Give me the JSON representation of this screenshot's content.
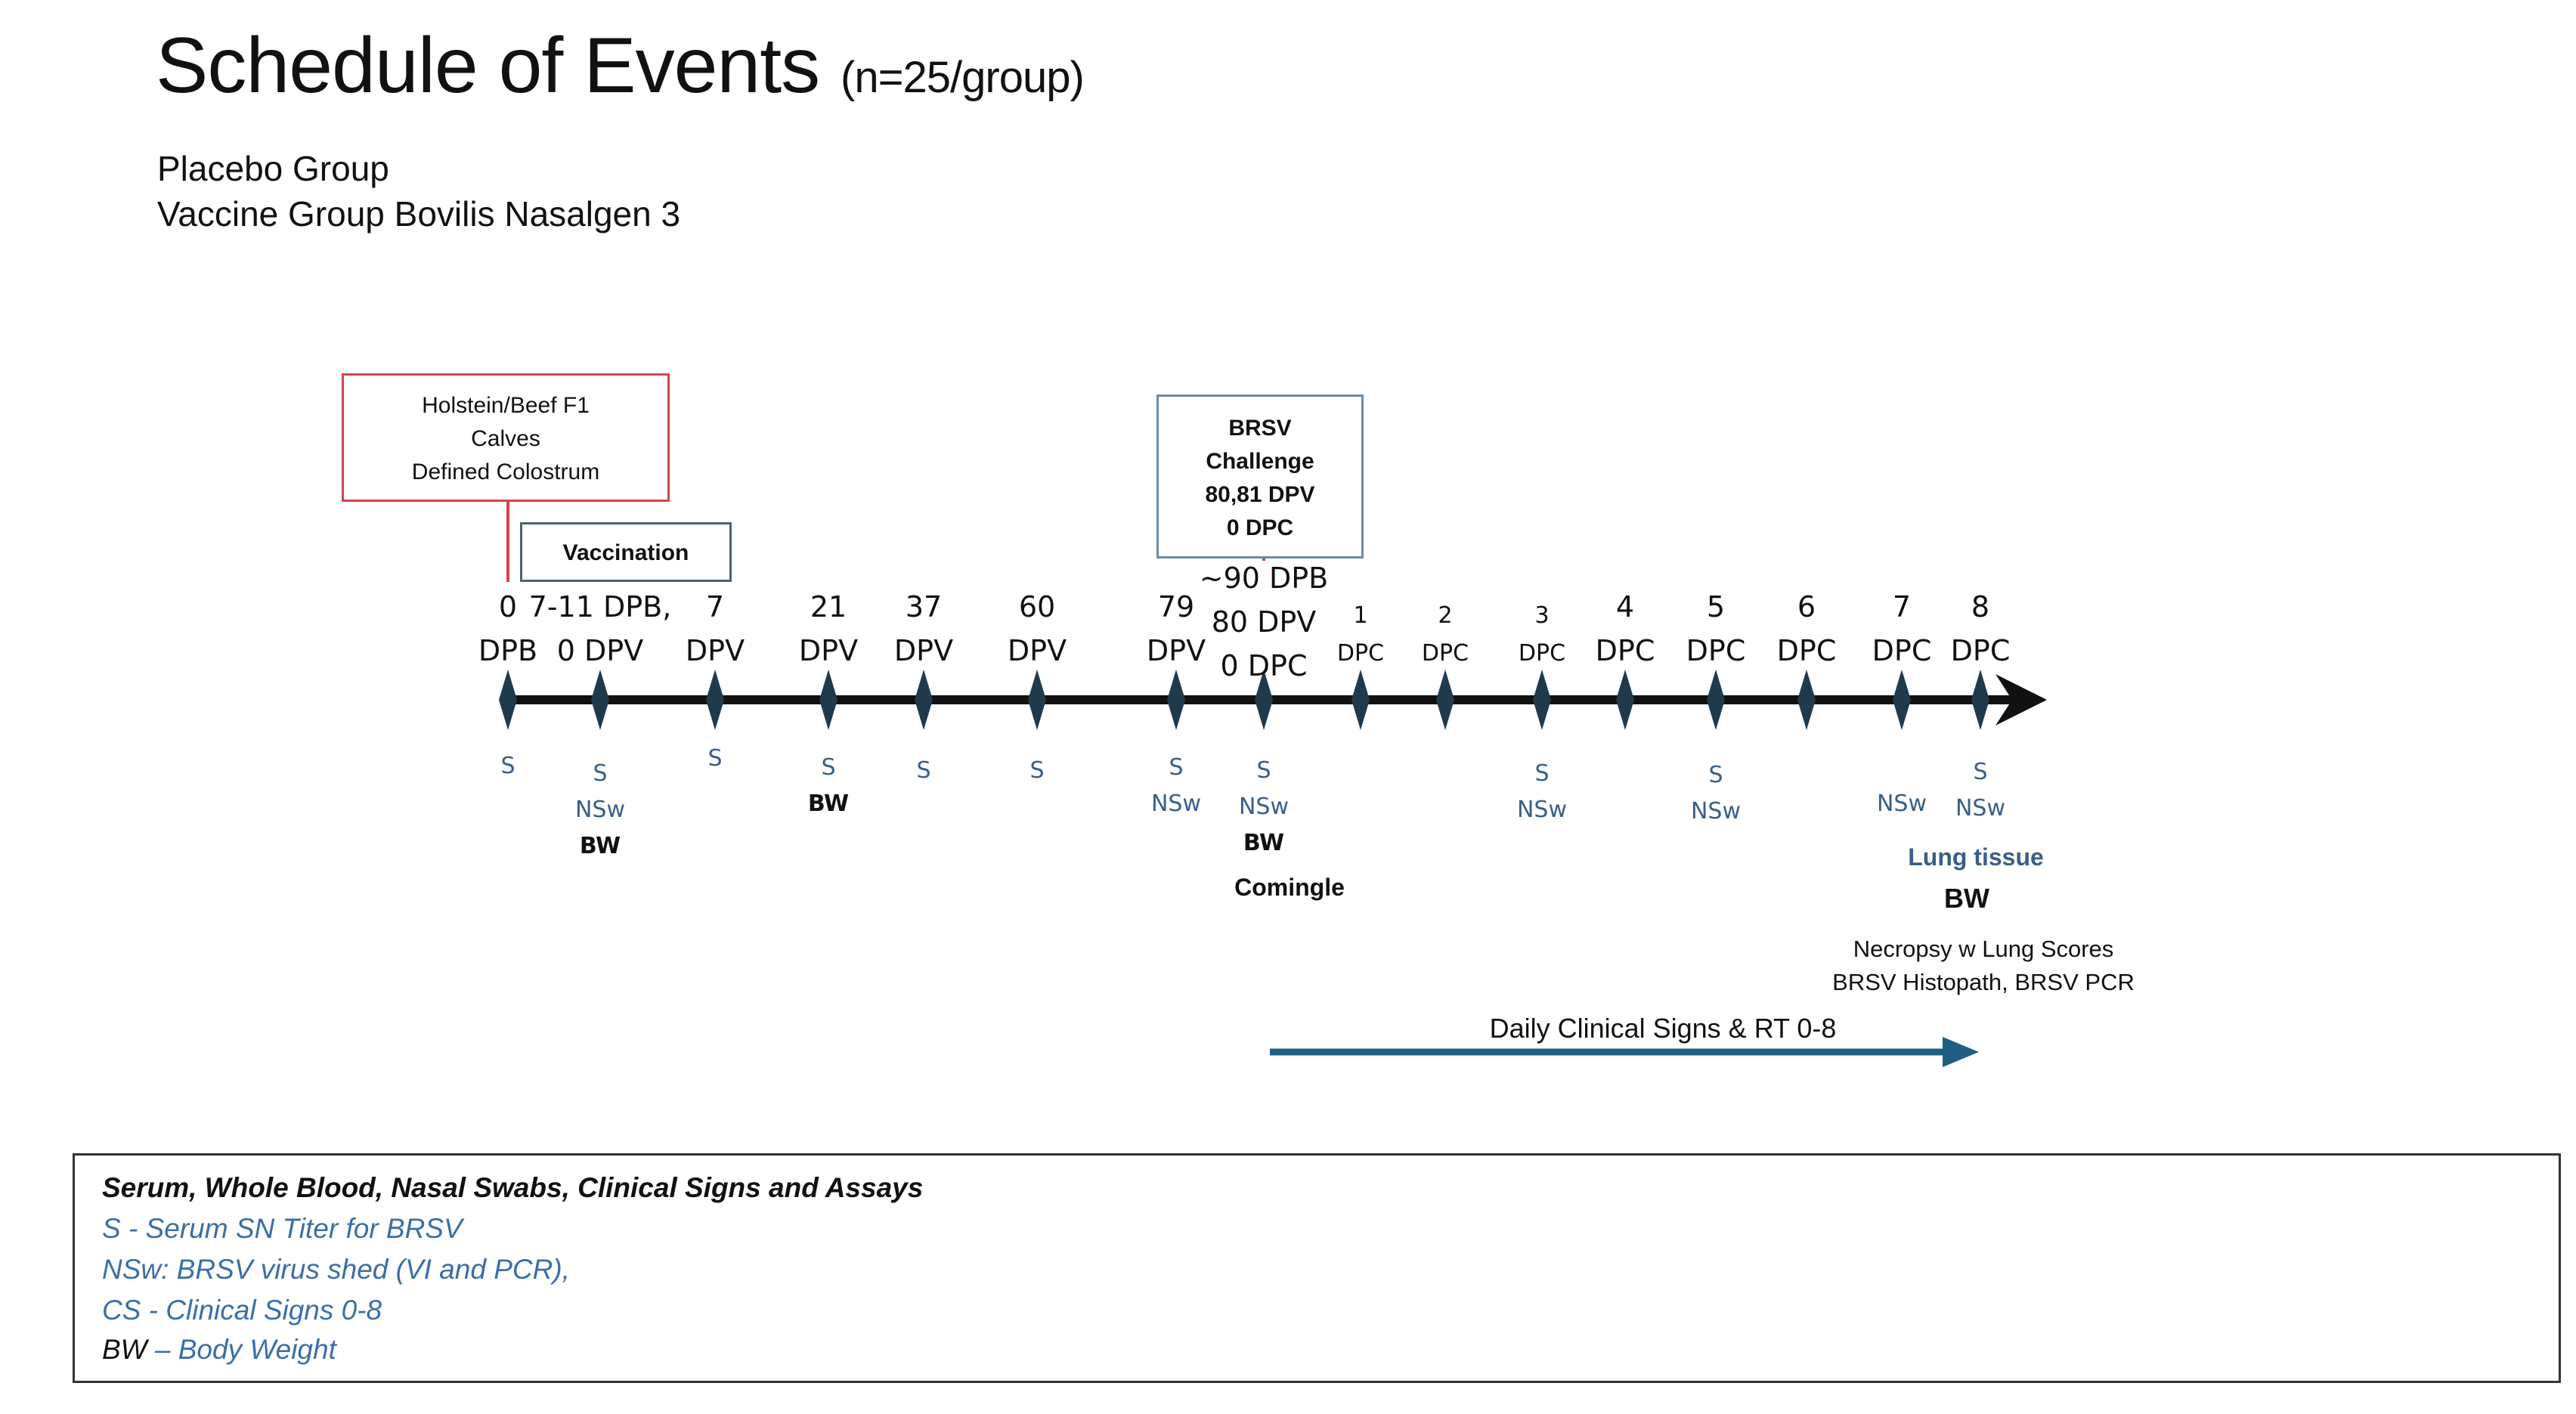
{
  "title": {
    "main": "Schedule of Events",
    "sub": "(n=25/group)"
  },
  "groups": [
    "Placebo Group",
    "Vaccine Group  Bovilis Nasalgen 3"
  ],
  "boxes": {
    "holstein": [
      "Holstein/Beef F1",
      "Calves",
      "Defined Colostrum"
    ],
    "vaccination": "Vaccination",
    "challenge": [
      "BRSV",
      "Challenge",
      "80,81 DPV",
      "0 DPC"
    ]
  },
  "timeline": [
    {
      "id": "t1",
      "label": [
        "0",
        "DPB"
      ],
      "samples": {
        "s": "S",
        "nsw": "",
        "bw": ""
      }
    },
    {
      "id": "t2",
      "label": [
        "7-11 DPB,",
        "0 DPV"
      ],
      "samples": {
        "s": "S",
        "nsw": "NSw",
        "bw": "BW"
      }
    },
    {
      "id": "t3",
      "label": [
        "7",
        "DPV"
      ],
      "samples": {
        "s": "S",
        "nsw": "",
        "bw": ""
      }
    },
    {
      "id": "t4",
      "label": [
        "21",
        "DPV"
      ],
      "samples": {
        "s": "S",
        "nsw": "",
        "bw": "BW"
      }
    },
    {
      "id": "t5",
      "label": [
        "37",
        "DPV"
      ],
      "samples": {
        "s": "S",
        "nsw": "",
        "bw": ""
      }
    },
    {
      "id": "t6",
      "label": [
        "60",
        "DPV"
      ],
      "samples": {
        "s": "S",
        "nsw": "",
        "bw": ""
      }
    },
    {
      "id": "t7",
      "label": [
        "79",
        "DPV"
      ],
      "samples": {
        "s": "S",
        "nsw": "NSw",
        "bw": ""
      }
    },
    {
      "id": "t8",
      "label": [
        "~90 DPB",
        "80 DPV",
        "0 DPC"
      ],
      "samples": {
        "s": "S",
        "nsw": "NSw",
        "bw": "BW"
      }
    },
    {
      "id": "t9",
      "label": [
        "1",
        "DPC"
      ],
      "samples": {
        "s": "",
        "nsw": "",
        "bw": ""
      }
    },
    {
      "id": "t10",
      "label": [
        "2",
        "DPC"
      ],
      "samples": {
        "s": "",
        "nsw": "",
        "bw": ""
      }
    },
    {
      "id": "t11",
      "label": [
        "3",
        "DPC"
      ],
      "samples": {
        "s": "S",
        "nsw": "NSw",
        "bw": ""
      }
    },
    {
      "id": "t12",
      "label": [
        "4",
        "DPC"
      ],
      "samples": {
        "s": "",
        "nsw": "",
        "bw": ""
      }
    },
    {
      "id": "t13",
      "label": [
        "5",
        "DPC"
      ],
      "samples": {
        "s": "S",
        "nsw": "NSw",
        "bw": ""
      }
    },
    {
      "id": "t14",
      "label": [
        "6",
        "DPC"
      ],
      "samples": {
        "s": "",
        "nsw": "",
        "bw": ""
      }
    },
    {
      "id": "t15",
      "label": [
        "7",
        "DPC"
      ],
      "samples": {
        "s": "",
        "nsw": "NSw",
        "bw": ""
      }
    },
    {
      "id": "t16",
      "label": [
        "8",
        "DPC"
      ],
      "samples": {
        "s": "S",
        "nsw": "NSw",
        "bw": ""
      }
    }
  ],
  "annotations": {
    "comingle": "Comingle",
    "lung_tissue": "Lung tissue",
    "final_bw": "BW",
    "necropsy": [
      "Necropsy w Lung Scores",
      "BRSV Histopath, BRSV PCR"
    ],
    "daily": "Daily Clinical Signs & RT 0-8"
  },
  "legend": {
    "heading": "Serum, Whole Blood, Nasal Swabs, Clinical Signs and Assays",
    "s": "S - Serum SN Titer for BRSV",
    "nsw": "NSw:  BRSV virus shed (VI and PCR),",
    "cs": "CS - Clinical Signs 0-8",
    "bw_key": "BW",
    "bw_rest": " – Body Weight"
  },
  "colors": {
    "axis": "#111111",
    "marker": "#1f3a4d",
    "sample_blue": "#3a5f86",
    "holstein_border": "#d4444c",
    "daily_arrow": "#1f5f84",
    "legend_blue": "#3b6ea8"
  }
}
